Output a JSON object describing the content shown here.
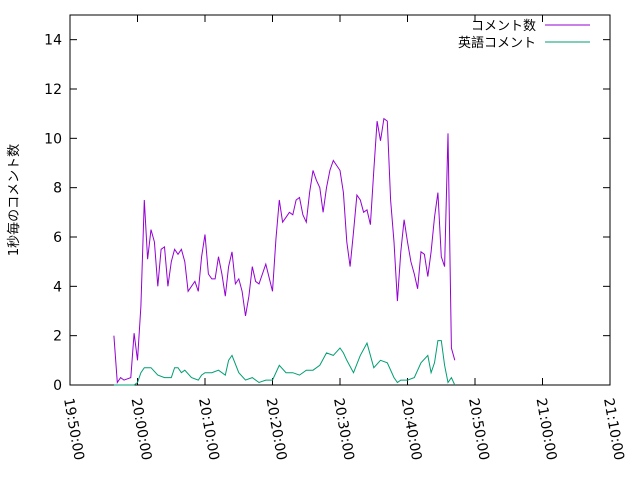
{
  "chart_data": {
    "type": "line",
    "ylabel": "1秒毎のコメント数",
    "xlabel": "",
    "ylim": [
      0,
      15
    ],
    "yticks": [
      "0",
      "2",
      "4",
      "6",
      "8",
      "10",
      "12",
      "14"
    ],
    "ytick_values": [
      0,
      2,
      4,
      6,
      8,
      10,
      12,
      14
    ],
    "xlim": [
      "19:50:00",
      "21:10:00"
    ],
    "xticks": [
      "19:50:00",
      "20:00:00",
      "20:10:00",
      "20:20:00",
      "20:30:00",
      "20:40:00",
      "20:50:00",
      "21:00:00",
      "21:10:00"
    ],
    "grid": false,
    "legend_position": "top-right",
    "series": [
      {
        "name": "コメント数",
        "color": "#9400d3",
        "points": [
          [
            "19:56:30",
            2.0
          ],
          [
            "19:57:00",
            0.1
          ],
          [
            "19:57:30",
            0.3
          ],
          [
            "19:58:00",
            0.2
          ],
          [
            "19:59:00",
            0.3
          ],
          [
            "19:59:30",
            2.1
          ],
          [
            "20:00:00",
            1.0
          ],
          [
            "20:00:30",
            3.2
          ],
          [
            "20:01:00",
            7.5
          ],
          [
            "20:01:30",
            5.1
          ],
          [
            "20:02:00",
            6.3
          ],
          [
            "20:02:30",
            5.8
          ],
          [
            "20:03:00",
            4.0
          ],
          [
            "20:03:30",
            5.5
          ],
          [
            "20:04:00",
            5.6
          ],
          [
            "20:04:30",
            4.0
          ],
          [
            "20:05:00",
            5.0
          ],
          [
            "20:05:30",
            5.5
          ],
          [
            "20:06:00",
            5.3
          ],
          [
            "20:06:30",
            5.5
          ],
          [
            "20:07:00",
            5.0
          ],
          [
            "20:07:30",
            3.8
          ],
          [
            "20:08:00",
            4.0
          ],
          [
            "20:08:30",
            4.2
          ],
          [
            "20:09:00",
            3.8
          ],
          [
            "20:09:30",
            5.2
          ],
          [
            "20:10:00",
            6.1
          ],
          [
            "20:10:30",
            4.5
          ],
          [
            "20:11:00",
            4.3
          ],
          [
            "20:11:30",
            4.3
          ],
          [
            "20:12:00",
            5.2
          ],
          [
            "20:12:30",
            4.5
          ],
          [
            "20:13:00",
            3.6
          ],
          [
            "20:13:30",
            4.8
          ],
          [
            "20:14:00",
            5.4
          ],
          [
            "20:14:30",
            4.1
          ],
          [
            "20:15:00",
            4.3
          ],
          [
            "20:15:30",
            3.8
          ],
          [
            "20:16:00",
            2.8
          ],
          [
            "20:16:30",
            3.6
          ],
          [
            "20:17:00",
            4.8
          ],
          [
            "20:17:30",
            4.2
          ],
          [
            "20:18:00",
            4.1
          ],
          [
            "20:19:00",
            4.9
          ],
          [
            "20:20:00",
            3.8
          ],
          [
            "20:20:30",
            5.9
          ],
          [
            "20:21:00",
            7.5
          ],
          [
            "20:21:30",
            6.6
          ],
          [
            "20:22:00",
            6.8
          ],
          [
            "20:22:30",
            7.0
          ],
          [
            "20:23:00",
            6.9
          ],
          [
            "20:23:30",
            7.5
          ],
          [
            "20:24:00",
            7.6
          ],
          [
            "20:24:30",
            6.9
          ],
          [
            "20:25:00",
            6.6
          ],
          [
            "20:25:30",
            7.8
          ],
          [
            "20:26:00",
            8.7
          ],
          [
            "20:26:30",
            8.3
          ],
          [
            "20:27:00",
            8.0
          ],
          [
            "20:27:30",
            7.0
          ],
          [
            "20:28:00",
            8.0
          ],
          [
            "20:28:30",
            8.7
          ],
          [
            "20:29:00",
            9.1
          ],
          [
            "20:30:00",
            8.7
          ],
          [
            "20:30:30",
            7.8
          ],
          [
            "20:31:00",
            5.8
          ],
          [
            "20:31:30",
            4.8
          ],
          [
            "20:32:00",
            6.2
          ],
          [
            "20:32:30",
            7.7
          ],
          [
            "20:33:00",
            7.5
          ],
          [
            "20:33:30",
            7.0
          ],
          [
            "20:34:00",
            7.1
          ],
          [
            "20:34:30",
            6.5
          ],
          [
            "20:35:00",
            8.7
          ],
          [
            "20:35:30",
            10.7
          ],
          [
            "20:36:00",
            9.9
          ],
          [
            "20:36:30",
            10.8
          ],
          [
            "20:37:00",
            10.7
          ],
          [
            "20:37:30",
            7.5
          ],
          [
            "20:38:00",
            5.8
          ],
          [
            "20:38:30",
            3.4
          ],
          [
            "20:39:00",
            5.4
          ],
          [
            "20:39:30",
            6.7
          ],
          [
            "20:40:00",
            5.8
          ],
          [
            "20:40:30",
            5.0
          ],
          [
            "20:41:00",
            4.5
          ],
          [
            "20:41:30",
            3.9
          ],
          [
            "20:42:00",
            5.4
          ],
          [
            "20:42:30",
            5.3
          ],
          [
            "20:43:00",
            4.4
          ],
          [
            "20:43:30",
            5.4
          ],
          [
            "20:44:00",
            6.8
          ],
          [
            "20:44:30",
            7.8
          ],
          [
            "20:45:00",
            5.2
          ],
          [
            "20:45:30",
            4.8
          ],
          [
            "20:46:00",
            10.2
          ],
          [
            "20:46:30",
            1.5
          ],
          [
            "20:47:00",
            1.0
          ]
        ]
      },
      {
        "name": "英語コメント",
        "color": "#009e73",
        "points": [
          [
            "19:56:30",
            0.0
          ],
          [
            "19:59:30",
            0.0
          ],
          [
            "20:00:00",
            0.1
          ],
          [
            "20:00:30",
            0.5
          ],
          [
            "20:01:00",
            0.7
          ],
          [
            "20:02:00",
            0.7
          ],
          [
            "20:03:00",
            0.4
          ],
          [
            "20:04:00",
            0.3
          ],
          [
            "20:05:00",
            0.3
          ],
          [
            "20:05:30",
            0.7
          ],
          [
            "20:06:00",
            0.7
          ],
          [
            "20:06:30",
            0.5
          ],
          [
            "20:07:00",
            0.6
          ],
          [
            "20:08:00",
            0.3
          ],
          [
            "20:09:00",
            0.2
          ],
          [
            "20:09:30",
            0.4
          ],
          [
            "20:10:00",
            0.5
          ],
          [
            "20:11:00",
            0.5
          ],
          [
            "20:12:00",
            0.6
          ],
          [
            "20:13:00",
            0.4
          ],
          [
            "20:13:30",
            1.0
          ],
          [
            "20:14:00",
            1.2
          ],
          [
            "20:15:00",
            0.5
          ],
          [
            "20:16:00",
            0.2
          ],
          [
            "20:17:00",
            0.3
          ],
          [
            "20:18:00",
            0.1
          ],
          [
            "20:19:00",
            0.2
          ],
          [
            "20:20:00",
            0.2
          ],
          [
            "20:21:00",
            0.8
          ],
          [
            "20:22:00",
            0.5
          ],
          [
            "20:23:00",
            0.5
          ],
          [
            "20:24:00",
            0.4
          ],
          [
            "20:25:00",
            0.6
          ],
          [
            "20:26:00",
            0.6
          ],
          [
            "20:27:00",
            0.8
          ],
          [
            "20:28:00",
            1.3
          ],
          [
            "20:29:00",
            1.2
          ],
          [
            "20:30:00",
            1.5
          ],
          [
            "20:30:30",
            1.3
          ],
          [
            "20:31:00",
            1.0
          ],
          [
            "20:32:00",
            0.5
          ],
          [
            "20:33:00",
            1.2
          ],
          [
            "20:34:00",
            1.7
          ],
          [
            "20:35:00",
            0.7
          ],
          [
            "20:36:00",
            1.0
          ],
          [
            "20:37:00",
            0.9
          ],
          [
            "20:38:00",
            0.3
          ],
          [
            "20:38:30",
            0.1
          ],
          [
            "20:39:00",
            0.2
          ],
          [
            "20:40:00",
            0.2
          ],
          [
            "20:41:00",
            0.3
          ],
          [
            "20:42:00",
            0.9
          ],
          [
            "20:43:00",
            1.2
          ],
          [
            "20:43:30",
            0.5
          ],
          [
            "20:44:00",
            0.9
          ],
          [
            "20:44:30",
            1.8
          ],
          [
            "20:45:00",
            1.8
          ],
          [
            "20:45:30",
            0.8
          ],
          [
            "20:46:00",
            0.1
          ],
          [
            "20:46:30",
            0.3
          ],
          [
            "20:47:00",
            0.0
          ]
        ]
      }
    ]
  }
}
